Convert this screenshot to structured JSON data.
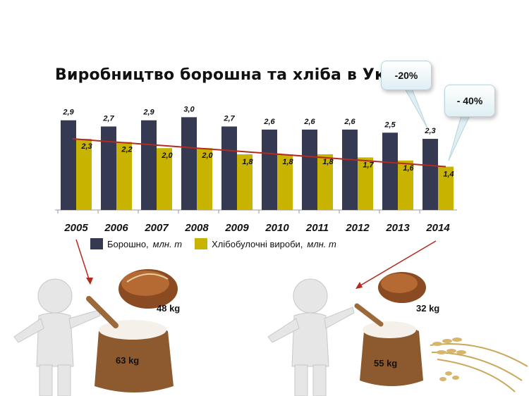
{
  "title": "Виробництво борошна та хліба в Україні",
  "callouts": {
    "first": "-20%",
    "second": "- 40%"
  },
  "legend": {
    "flour": {
      "label": "Борошно,",
      "unit": "млн. т"
    },
    "bread": {
      "label": "Хлібобулочні вироби,",
      "unit": "млн. т"
    }
  },
  "weights": {
    "left_bread": "48 kg",
    "left_flour": "63 kg",
    "right_bread": "32 kg",
    "right_flour": "55 kg"
  },
  "colors": {
    "flour": "#353a52",
    "bread": "#c8b400",
    "trend": "#b42a1e",
    "axis": "#999999"
  },
  "chart_data": {
    "type": "bar",
    "title": "Виробництво борошна та хліба в Україні",
    "categories": [
      "2005",
      "2006",
      "2007",
      "2008",
      "2009",
      "2010",
      "2011",
      "2012",
      "2013",
      "2014"
    ],
    "series": [
      {
        "name": "Борошно, млн. т",
        "values": [
          2.9,
          2.7,
          2.9,
          3.0,
          2.7,
          2.6,
          2.6,
          2.6,
          2.5,
          2.3
        ],
        "labels": [
          "2,9",
          "2,7",
          "2,9",
          "3,0",
          "2,7",
          "2,6",
          "2,6",
          "2,6",
          "2,5",
          "2,3"
        ]
      },
      {
        "name": "Хлібобулочні вироби, млн. т",
        "values": [
          2.3,
          2.2,
          2.0,
          2.0,
          1.8,
          1.8,
          1.8,
          1.7,
          1.6,
          1.4
        ],
        "labels": [
          "2,3",
          "2,2",
          "2,0",
          "2,0",
          "1,8",
          "1,8",
          "1,8",
          "1,7",
          "1,6",
          "1,4"
        ]
      }
    ],
    "trendline": {
      "series": "Хлібобулочні вироби, млн. т",
      "from": 2.3,
      "to": 1.4
    },
    "ylim": [
      0,
      3.6
    ],
    "legend": "bottom",
    "grid": false
  }
}
